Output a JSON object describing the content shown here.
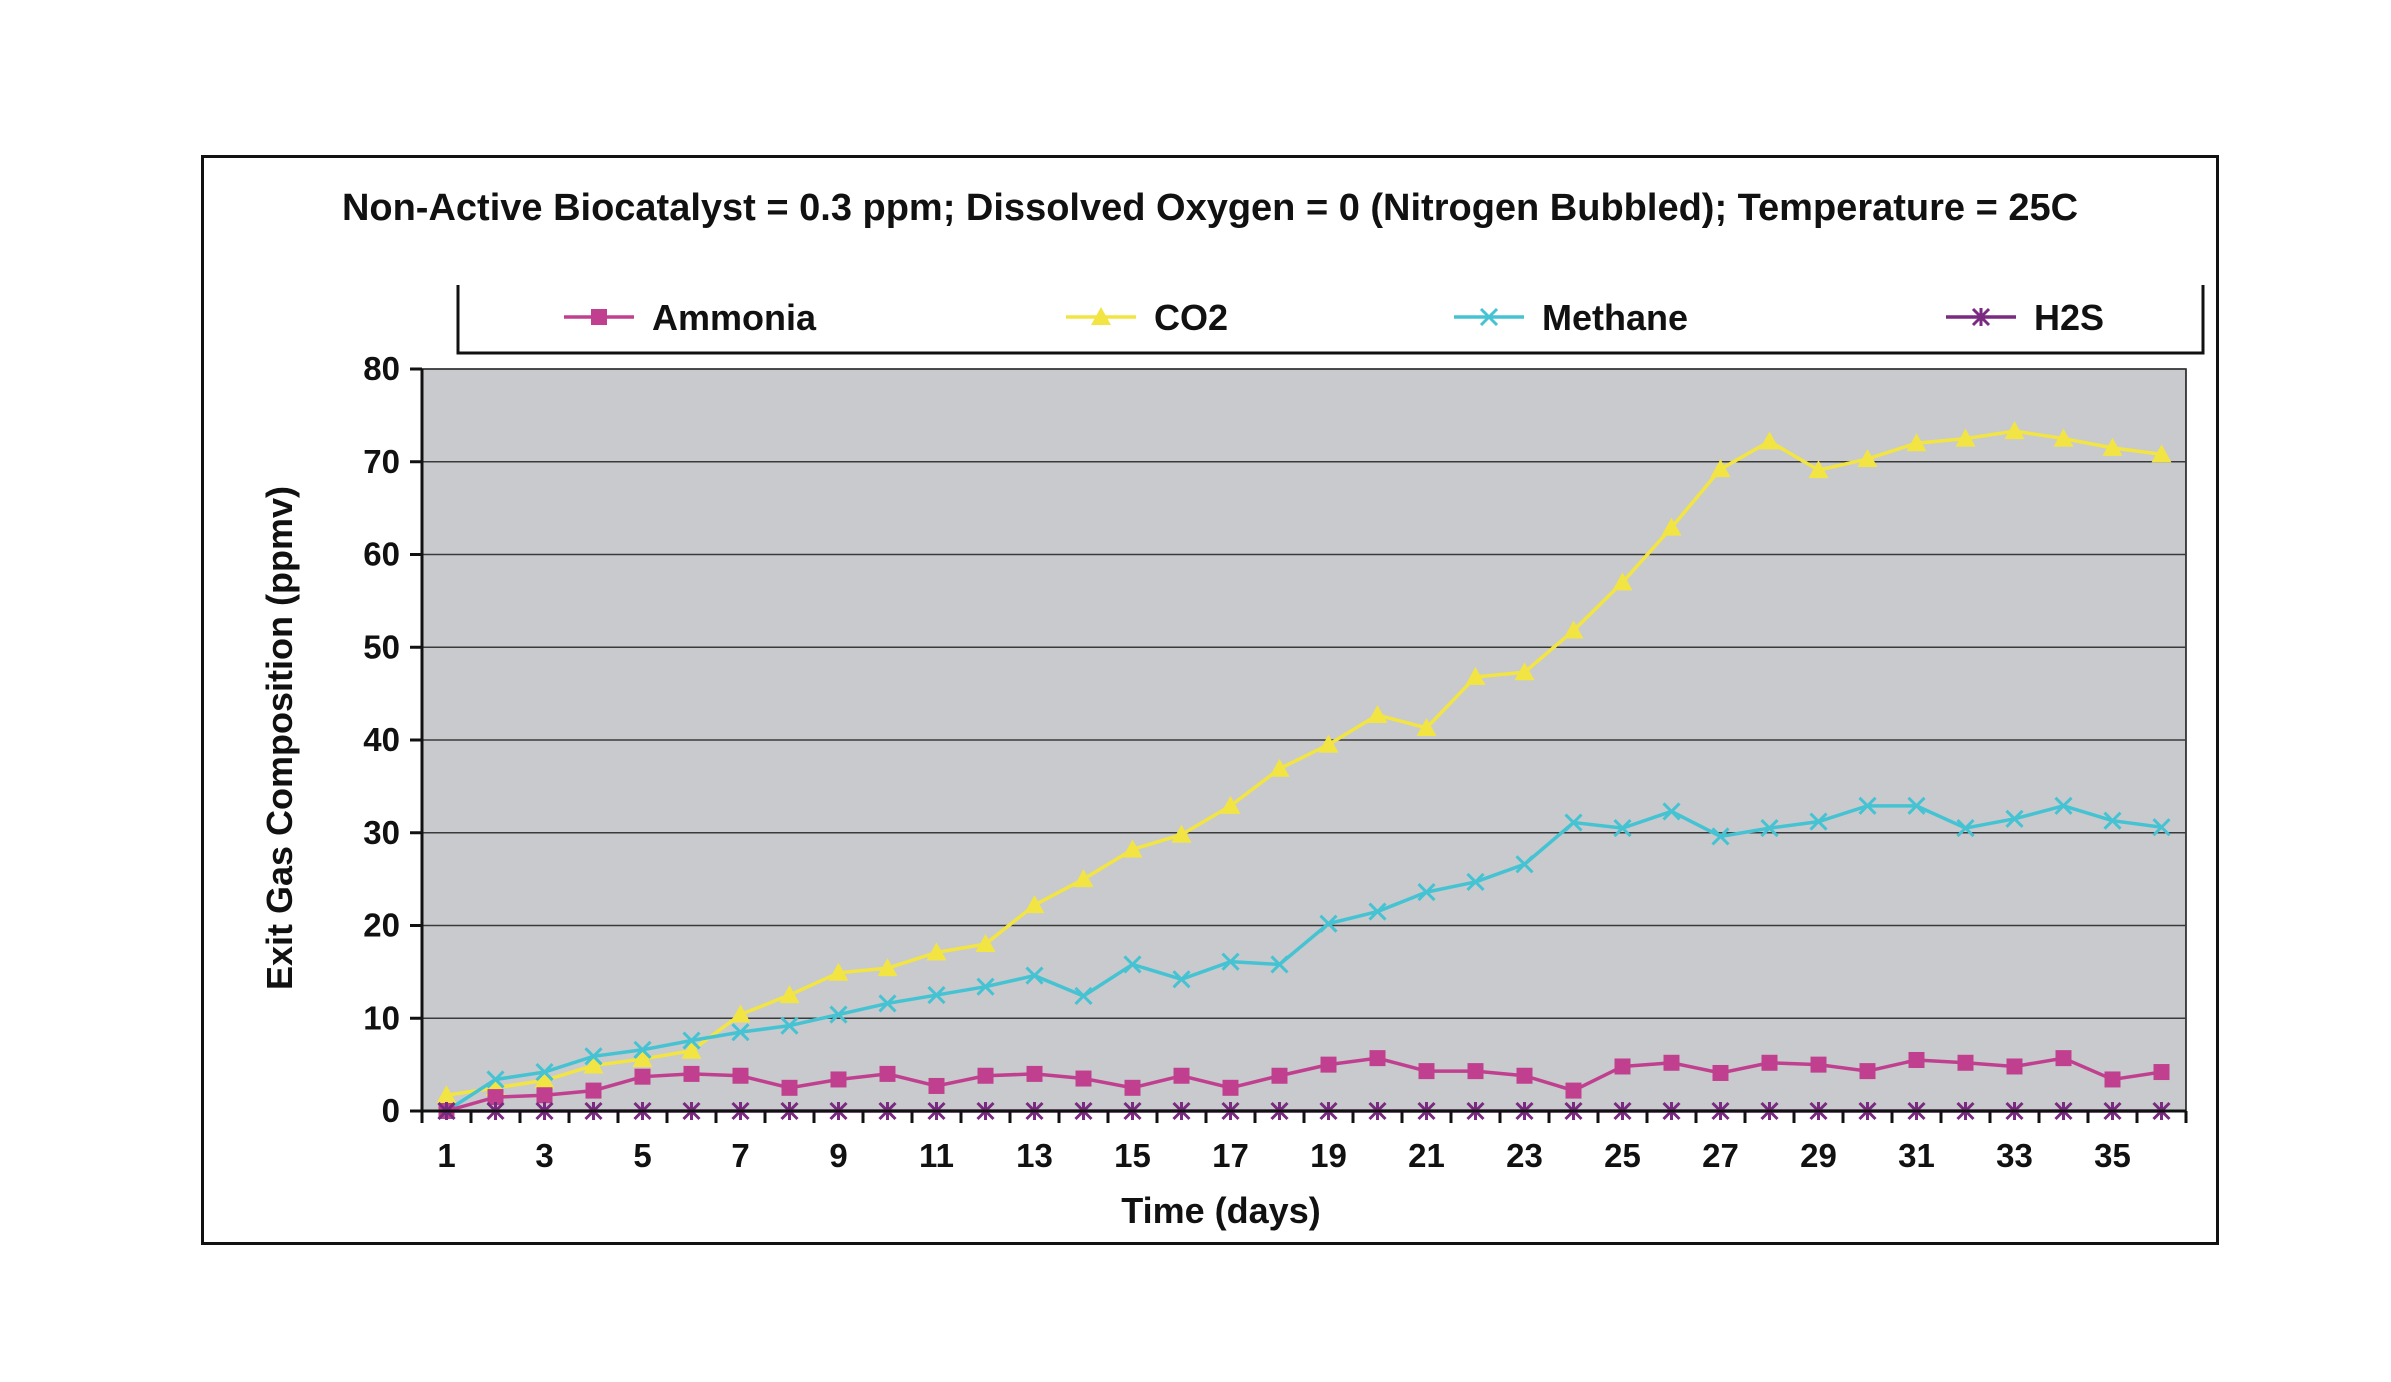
{
  "chart_data": {
    "type": "line",
    "title": "Non-Active Biocatalyst = 0.3 ppm; Dissolved Oxygen = 0 (Nitrogen Bubbled); Temperature = 25C",
    "xlabel": "Time (days)",
    "ylabel": "Exit Gas Composition (ppmv)",
    "ylim": [
      0,
      80
    ],
    "yticks": [
      0,
      10,
      20,
      30,
      40,
      50,
      60,
      70,
      80
    ],
    "xlim": [
      1,
      36
    ],
    "xticks": [
      1,
      3,
      5,
      7,
      9,
      11,
      13,
      15,
      17,
      19,
      21,
      23,
      25,
      27,
      29,
      31,
      33,
      35
    ],
    "grid": true,
    "legend_position": "top",
    "plot_background": "#c8cacd",
    "x": [
      1,
      2,
      3,
      4,
      5,
      6,
      7,
      8,
      9,
      10,
      11,
      12,
      13,
      14,
      15,
      16,
      17,
      18,
      19,
      20,
      21,
      22,
      23,
      24,
      25,
      26,
      27,
      28,
      29,
      30,
      31,
      32,
      33,
      34,
      35,
      36
    ],
    "series": [
      {
        "name": "Ammonia",
        "color": "#c0408f",
        "marker": "square",
        "values": [
          0,
          1.5,
          1.7,
          2.2,
          3.7,
          4.0,
          3.8,
          2.5,
          3.4,
          4.0,
          2.7,
          3.8,
          4.0,
          3.5,
          2.5,
          3.8,
          2.5,
          3.8,
          5.0,
          5.7,
          4.3,
          4.3,
          3.8,
          2.2,
          4.8,
          5.2,
          4.1,
          5.2,
          5.0,
          4.3,
          5.5,
          5.2,
          4.8,
          5.7,
          3.4,
          4.2
        ]
      },
      {
        "name": "CO2",
        "color": "#f2e543",
        "marker": "triangle",
        "values": [
          1.7,
          2.5,
          3.3,
          4.9,
          5.6,
          6.5,
          10.4,
          12.5,
          14.9,
          15.4,
          17.1,
          18.0,
          22.2,
          25.0,
          28.2,
          29.8,
          32.9,
          36.9,
          39.5,
          42.7,
          41.3,
          46.8,
          47.3,
          51.8,
          57.0,
          62.9,
          69.2,
          72.2,
          69.1,
          70.3,
          72.0,
          72.5,
          73.3,
          72.5,
          71.5,
          70.8
        ]
      },
      {
        "name": "Methane",
        "color": "#45c3d3",
        "marker": "x",
        "values": [
          0,
          3.4,
          4.2,
          5.9,
          6.6,
          7.6,
          8.5,
          9.2,
          10.4,
          11.6,
          12.5,
          13.4,
          14.6,
          12.4,
          15.8,
          14.2,
          16.1,
          15.8,
          20.2,
          21.5,
          23.6,
          24.7,
          26.6,
          31.1,
          30.5,
          32.3,
          29.6,
          30.5,
          31.2,
          32.9,
          32.9,
          30.5,
          31.5,
          32.9,
          31.3,
          30.6
        ]
      },
      {
        "name": "H2S",
        "color": "#7a2a80",
        "marker": "asterisk",
        "values": [
          0,
          0,
          0,
          0,
          0,
          0,
          0,
          0,
          0,
          0,
          0,
          0,
          0,
          0,
          0,
          0,
          0,
          0,
          0,
          0,
          0,
          0,
          0,
          0,
          0,
          0,
          0,
          0,
          0,
          0,
          0,
          0,
          0,
          0,
          0,
          0
        ]
      }
    ]
  }
}
